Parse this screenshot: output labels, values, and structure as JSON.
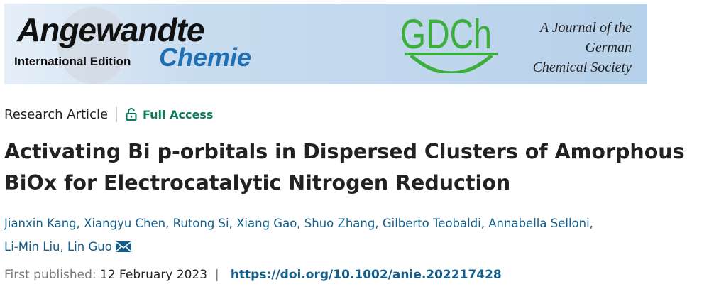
{
  "banner": {
    "journal_line1": "Angewandte",
    "journal_line2": "International Edition",
    "journal_line3": "Chemie",
    "society_logo": "GDCh",
    "society_text": [
      "A Journal of the",
      "German",
      "Chemical Society"
    ]
  },
  "meta": {
    "article_type": "Research Article",
    "access_icon": "unlocked-padlock-icon",
    "access_label": "Full Access",
    "access_color": "#0b7a5d"
  },
  "title": "Activating Bi p-orbitals in Dispersed Clusters of Amorphous BiOx for Electrocatalytic Nitrogen Reduction",
  "authors": [
    "Jianxin Kang",
    "Xiangyu Chen",
    "Rutong Si",
    "Xiang Gao",
    "Shuo Zhang",
    "Gilberto Teobaldi",
    "Annabella Selloni",
    "Li-Min Liu",
    "Lin Guo"
  ],
  "corresponding_icon": "envelope-icon",
  "publication": {
    "label": "First published:",
    "date": "12 February 2023",
    "doi": "https://doi.org/10.1002/anie.202217428"
  }
}
